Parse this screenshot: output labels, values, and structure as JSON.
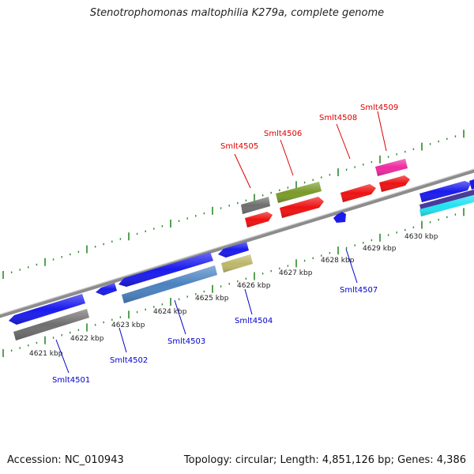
{
  "title": "Stenotrophomonas maltophilia K279a, complete genome",
  "footer": {
    "accession": "Accession: NC_010943",
    "summary": "Topology: circular; Length: 4,851,126 bp; Genes: 4,386"
  },
  "kbp_labels": [
    "4621 kbp",
    "4622 kbp",
    "4623 kbp",
    "4624 kbp",
    "4625 kbp",
    "4626 kbp",
    "4627 kbp",
    "4628 kbp",
    "4629 kbp",
    "4630 kbp"
  ],
  "top_labels": [
    "Smlt4505",
    "Smlt4506",
    "Smlt4508",
    "Smlt4509"
  ],
  "bottom_labels": [
    "Smlt4501",
    "Smlt4502",
    "Smlt4503",
    "Smlt4504",
    "Smlt4507"
  ],
  "colors": {
    "label_top": "#e00000",
    "label_bottom": "#0000cc",
    "tick": "#2a8a2a",
    "backbone": "#8c8c8c"
  }
}
